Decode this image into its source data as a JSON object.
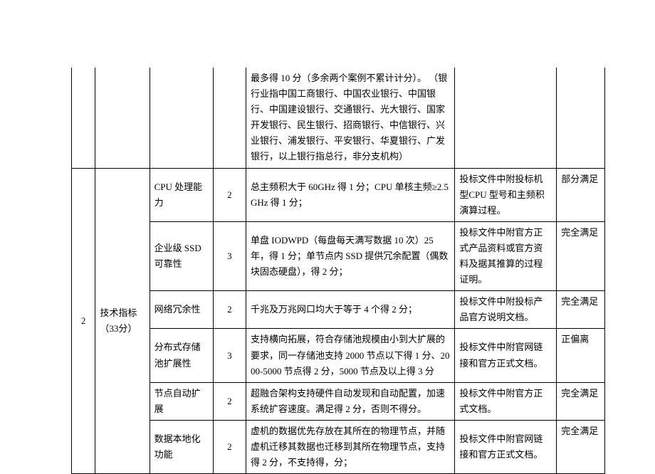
{
  "topRow": {
    "desc": "最多得 10 分（多余两个案例不累计计分）。\n（银行业指中国工商银行、中国农业银行、中国银行、中国建设银行、交通银行、光大银行、国家开发银行、民生银行、招商银行、中信银行、兴业银行、浦发银行、平安银行、华夏银行、广发银行，以上银行指总行，非分支机构）"
  },
  "group": {
    "index": "2",
    "category": "技术指标（33分）"
  },
  "rows": [
    {
      "item": "CPU 处理能力",
      "score": "2",
      "desc": "总主频积大于 60GHz 得 1 分；CPU 单核主频≥2.5GHz 得 1 分；",
      "req": "投标文件中附投标机型CPU 型号和主频积演算过程。",
      "res": "部分满足"
    },
    {
      "item": "企业级 SSD 可靠性",
      "score": "3",
      "desc": "单盘 IODWPD（每盘每天满写数据 10 次）25 年，得 1 分；单节点内 SSD 提供冗余配置（偶数块固态硬盘），得 2 分；",
      "req": "投标文件中附官方正式产品资料或官方资料及据其推算的过程证明。",
      "res": "完全满足"
    },
    {
      "item": "网络冗余性",
      "score": "2",
      "desc": "千兆及万兆网口均大于等于 4 个得 2 分；",
      "req": "投标文件中附投标产品官方说明文档。",
      "res": "完全满足"
    },
    {
      "item": "分布式存储池扩展性",
      "score": "3",
      "desc": "支持横向拓展，符合存储池规模由小到大扩展的要求，同一存储池支持 2000 节点以下得 1 分、2000-5000 节点得 2 分，5000 节点及以上得 3 分",
      "req": "投标文件中附官网链接和官方正式文档。",
      "res": "正偏离"
    },
    {
      "item": "节点自动扩展",
      "score": "2",
      "desc": "超融合架构支持硬件自动发现和自动配置，加速系统扩容速度。满足得 2 分，否则不得分。",
      "req": "投标文件中附官方正式文档。",
      "res": "完全满足"
    },
    {
      "item": "数据本地化功能",
      "score": "2",
      "desc": "虚机的数据优先存放在其所在的物理节点，并随虚机迁移其数据也迁移到其所在物理节点，支持得 2 分，不支持得，分；",
      "req": "投标文件中附官网链接和官方正式文档。",
      "res": "完全满足"
    }
  ]
}
